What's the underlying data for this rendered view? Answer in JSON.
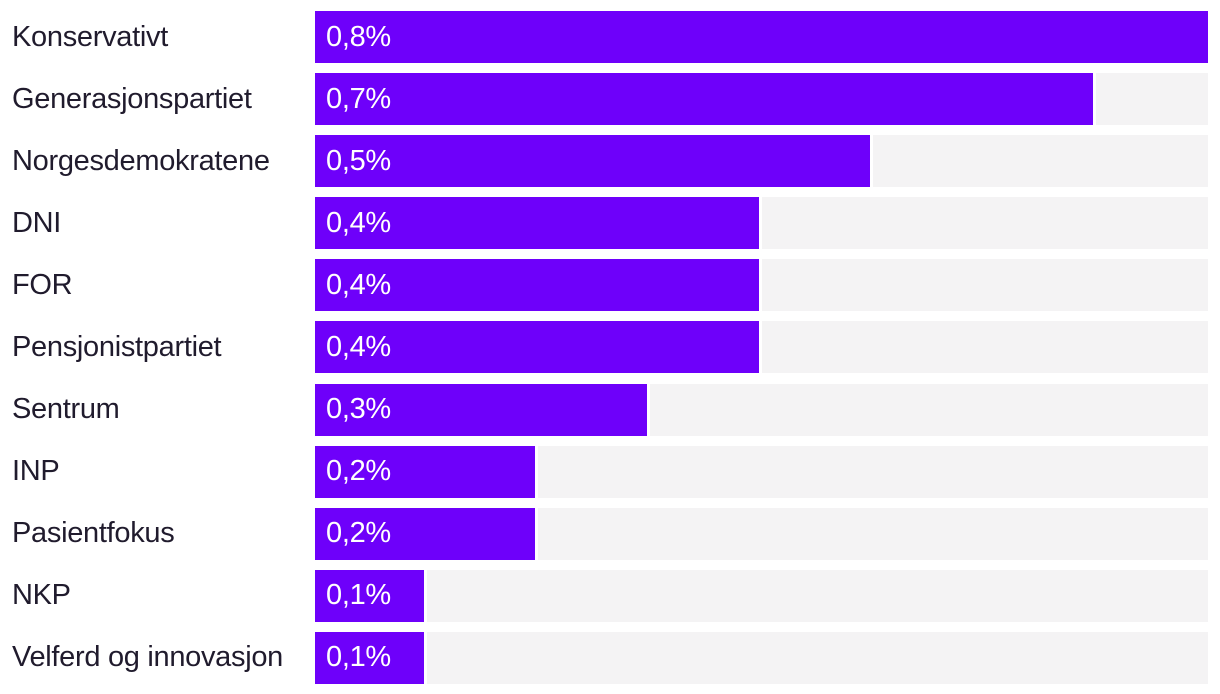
{
  "chart_data": {
    "type": "bar",
    "orientation": "horizontal",
    "title": "",
    "xlabel": "",
    "ylabel": "",
    "xlim": [
      0,
      0.8
    ],
    "grid": false,
    "legend": false,
    "categories": [
      "Konservativt",
      "Generasjonspartiet",
      "Norgesdemokratene",
      "DNI",
      "FOR",
      "Pensjonistpartiet",
      "Sentrum",
      "INP",
      "Pasientfokus",
      "NKP",
      "Velferd og innovasjon"
    ],
    "values": [
      0.8,
      0.7,
      0.5,
      0.4,
      0.4,
      0.4,
      0.3,
      0.2,
      0.2,
      0.1,
      0.1
    ],
    "value_labels": [
      "0,8%",
      "0,7%",
      "0,5%",
      "0,4%",
      "0,4%",
      "0,4%",
      "0,3%",
      "0,2%",
      "0,2%",
      "0,1%",
      "0,1%"
    ],
    "colors": {
      "bar": "#6e00fa",
      "track": "#f4f3f4",
      "label_text": "#201b2d",
      "value_text": "#ffffff",
      "background": "#ffffff"
    }
  }
}
